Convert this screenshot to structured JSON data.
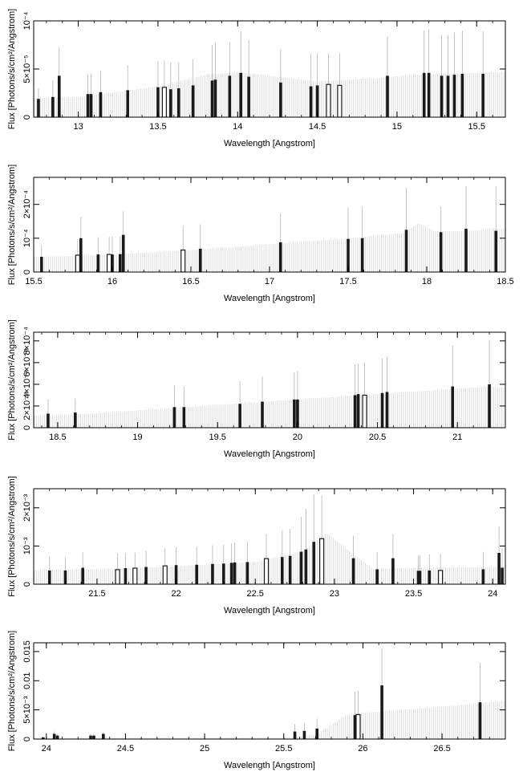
{
  "colors": {
    "frame": "#000000",
    "background_lines": "#c8c8c8",
    "error_bars": "#b4b4b4",
    "bars": "#1a1a1a"
  },
  "chart_data": [
    {
      "type": "bar",
      "xlabel": "Wavelength [Angstrom]",
      "ylabel": "Flux [Photons/s/cm²/Angstrom]",
      "xlim": [
        12.72,
        15.68
      ],
      "ylim": [
        0,
        0.0001
      ],
      "xticks": [
        13,
        13.5,
        14,
        14.5,
        15,
        15.5
      ],
      "xtick_labels": [
        "13",
        "13.5",
        "14",
        "14.5",
        "15",
        "15.5"
      ],
      "yticks": [
        0,
        5e-05,
        0.0001
      ],
      "ytick_labels": [
        "0",
        "5×10⁻⁵",
        "10⁻⁴"
      ],
      "continuum": {
        "x": [
          12.72,
          13.0,
          13.5,
          13.8,
          13.95,
          14.0,
          14.5,
          14.9,
          15.1,
          15.3,
          15.68
        ],
        "y": [
          2e-05,
          2.1e-05,
          3.2e-05,
          4.4e-05,
          4.6e-05,
          4.7e-05,
          3.7e-05,
          4.1e-05,
          4.4e-05,
          4.5e-05,
          4.7e-05
        ]
      },
      "bars": {
        "x": [
          12.75,
          12.84,
          12.88,
          13.06,
          13.08,
          13.14,
          13.31,
          13.5,
          13.54,
          13.58,
          13.63,
          13.72,
          13.84,
          13.86,
          13.95,
          14.02,
          14.07,
          14.27,
          14.46,
          14.5,
          14.57,
          14.64,
          14.94,
          15.17,
          15.2,
          15.28,
          15.32,
          15.36,
          15.41,
          15.54
        ],
        "y": [
          1.9e-05,
          2.1e-05,
          4.3e-05,
          2.4e-05,
          2.4e-05,
          2.6e-05,
          2.8e-05,
          3.1e-05,
          3.1e-05,
          2.9e-05,
          3e-05,
          3.3e-05,
          3.8e-05,
          3.9e-05,
          4.3e-05,
          4.6e-05,
          4.2e-05,
          3.6e-05,
          3.2e-05,
          3.3e-05,
          3.4e-05,
          3.3e-05,
          4.3e-05,
          4.6e-05,
          4.6e-05,
          4.3e-05,
          4.3e-05,
          4.4e-05,
          4.5e-05,
          4.5e-05
        ],
        "hollow": [
          false,
          false,
          false,
          false,
          false,
          false,
          false,
          false,
          true,
          false,
          false,
          false,
          false,
          false,
          false,
          false,
          false,
          false,
          false,
          false,
          true,
          true,
          false,
          false,
          false,
          false,
          false,
          false,
          false,
          false
        ],
        "err": [
          3e-05,
          3.8e-05,
          7.3e-05,
          4.4e-05,
          4.5e-05,
          4.8e-05,
          5.4e-05,
          5.8e-05,
          5.9e-05,
          5.7e-05,
          5.7e-05,
          6e-05,
          7.5e-05,
          7.7e-05,
          7.8e-05,
          8.9e-05,
          8e-05,
          7.1e-05,
          6.6e-05,
          6.6e-05,
          6.6e-05,
          6.6e-05,
          8.4e-05,
          9e-05,
          9.1e-05,
          8.5e-05,
          8.5e-05,
          8.8e-05,
          9e-05,
          8.9e-05
        ]
      }
    },
    {
      "type": "bar",
      "xlabel": "Wavelength [Angstrom]",
      "ylabel": "Flux [Photons/s/cm²/Angstrom]",
      "xlim": [
        15.5,
        18.5
      ],
      "ylim": [
        0,
        0.00028
      ],
      "xticks": [
        15.5,
        16,
        16.5,
        17,
        17.5,
        18,
        18.5
      ],
      "xtick_labels": [
        "15.5",
        "16",
        "16.5",
        "17",
        "17.5",
        "18",
        "18.5"
      ],
      "yticks": [
        0,
        0.0001,
        0.0002
      ],
      "ytick_labels": [
        "0",
        "10⁻⁴",
        "2×10⁻⁴"
      ],
      "continuum": {
        "x": [
          15.5,
          15.8,
          16.0,
          16.5,
          17.0,
          17.5,
          17.85,
          17.95,
          18.05,
          18.3,
          18.4,
          18.5
        ],
        "y": [
          4.5e-05,
          4.8e-05,
          5.2e-05,
          6.5e-05,
          8.2e-05,
          0.0001,
          0.000115,
          0.000145,
          0.00012,
          0.000122,
          0.000128,
          0.000128
        ]
      },
      "bars": {
        "x": [
          15.55,
          15.78,
          15.8,
          15.91,
          15.98,
          16.0,
          16.05,
          16.07,
          16.45,
          16.56,
          17.07,
          17.5,
          17.59,
          17.87,
          18.09,
          18.25,
          18.44
        ],
        "y": [
          4.5e-05,
          5e-05,
          0.0001,
          5.2e-05,
          5.2e-05,
          5.2e-05,
          5.3e-05,
          0.00011,
          6.5e-05,
          6.9e-05,
          8.8e-05,
          9.8e-05,
          0.0001,
          0.000125,
          0.000118,
          0.000128,
          0.000122
        ],
        "hollow": [
          false,
          true,
          false,
          false,
          true,
          false,
          false,
          false,
          true,
          false,
          false,
          false,
          false,
          false,
          false,
          false,
          false
        ],
        "err": [
          8e-05,
          9.8e-05,
          0.000163,
          0.000103,
          0.000104,
          0.000104,
          0.000106,
          0.00018,
          0.000137,
          0.000141,
          0.000173,
          0.000191,
          0.000194,
          0.000249,
          0.000194,
          0.000254,
          0.000254
        ]
      }
    },
    {
      "type": "bar",
      "xlabel": "Wavelength [Angstrom]",
      "ylabel": "Flux [Photons/s/cm²/Angstrom]",
      "xlim": [
        18.35,
        21.3
      ],
      "ylim": [
        0,
        0.00088
      ],
      "xticks": [
        18.5,
        19,
        19.5,
        20,
        20.5,
        21
      ],
      "xtick_labels": [
        "18.5",
        "19",
        "19.5",
        "20",
        "20.5",
        "21"
      ],
      "yticks": [
        0,
        0.0002,
        0.0004,
        0.0006,
        0.0008
      ],
      "ytick_labels": [
        "0",
        "2×10⁻⁴",
        "4×10⁻⁴",
        "6×10⁻⁴",
        "8×10⁻⁴"
      ],
      "continuum": {
        "x": [
          18.35,
          18.6,
          19.0,
          19.5,
          20.0,
          20.5,
          21.0,
          21.2,
          21.3
        ],
        "y": [
          0.00011,
          0.00012,
          0.00016,
          0.00021,
          0.00026,
          0.00031,
          0.00036,
          0.00038,
          0.00037
        ]
      },
      "bars": {
        "x": [
          18.44,
          18.61,
          19.23,
          19.29,
          19.64,
          19.78,
          19.98,
          20.0,
          20.36,
          20.38,
          20.42,
          20.53,
          20.56,
          20.97,
          21.2
        ],
        "y": [
          0.00013,
          0.00014,
          0.00019,
          0.00019,
          0.00022,
          0.00024,
          0.00026,
          0.00026,
          0.0003,
          0.00031,
          0.0003,
          0.00032,
          0.00033,
          0.00038,
          0.0004
        ],
        "hollow": [
          false,
          false,
          false,
          false,
          false,
          false,
          false,
          false,
          false,
          false,
          true,
          false,
          false,
          false,
          false
        ],
        "err": [
          0.00026,
          0.00027,
          0.00039,
          0.00038,
          0.00043,
          0.00047,
          0.00051,
          0.00052,
          0.00058,
          0.00059,
          0.0006,
          0.00064,
          0.00065,
          0.00076,
          0.00081
        ]
      }
    },
    {
      "type": "bar",
      "xlabel": "Wavelength [Angstrom]",
      "ylabel": "Flux [Photons/s/cm²/Angstrom]",
      "xlim": [
        21.1,
        24.08
      ],
      "ylim": [
        0,
        0.0025
      ],
      "xticks": [
        21.5,
        22,
        22.5,
        23,
        23.5,
        24
      ],
      "xtick_labels": [
        "21.5",
        "22",
        "22.5",
        "23",
        "23.5",
        "24"
      ],
      "yticks": [
        0,
        0.001,
        0.002
      ],
      "ytick_labels": [
        "0",
        "10⁻³",
        "2×10⁻³"
      ],
      "continuum": {
        "x": [
          21.1,
          21.5,
          22.0,
          22.5,
          22.8,
          22.95,
          23.1,
          23.25,
          23.4,
          23.7,
          24.08
        ],
        "y": [
          0.00037,
          0.00039,
          0.00047,
          0.00058,
          0.00086,
          0.00134,
          0.00085,
          0.00039,
          0.00042,
          0.00044,
          0.00046
        ]
      },
      "bars": {
        "x": [
          21.2,
          21.3,
          21.41,
          21.63,
          21.68,
          21.74,
          21.81,
          21.93,
          22.0,
          22.13,
          22.23,
          22.3,
          22.35,
          22.37,
          22.45,
          22.57,
          22.67,
          22.72,
          22.79,
          22.82,
          22.87,
          22.92,
          23.12,
          23.27,
          23.37,
          23.53,
          23.54,
          23.6,
          23.67,
          23.94,
          24.04,
          24.06
        ],
        "y": [
          0.00036,
          0.00036,
          0.00043,
          0.00038,
          0.00042,
          0.00042,
          0.00045,
          0.00048,
          0.0005,
          0.00051,
          0.00053,
          0.00054,
          0.00056,
          0.00057,
          0.00058,
          0.00067,
          0.00071,
          0.00074,
          0.00085,
          0.00091,
          0.00111,
          0.00119,
          0.00068,
          0.00039,
          0.00068,
          0.00035,
          0.00035,
          0.00036,
          0.00036,
          0.00039,
          0.00082,
          0.00043
        ],
        "hollow": [
          false,
          false,
          false,
          true,
          false,
          true,
          false,
          true,
          false,
          false,
          false,
          false,
          false,
          false,
          false,
          true,
          false,
          false,
          false,
          false,
          false,
          true,
          false,
          false,
          false,
          false,
          false,
          false,
          true,
          false,
          false,
          false
        ],
        "err": [
          0.00073,
          0.00071,
          0.00084,
          0.00081,
          0.00082,
          0.00083,
          0.00087,
          0.00094,
          0.00097,
          0.00098,
          0.00102,
          0.00104,
          0.00107,
          0.00109,
          0.00111,
          0.00132,
          0.00141,
          0.00145,
          0.00177,
          0.00198,
          0.00235,
          0.00232,
          0.00127,
          0.00083,
          0.00131,
          0.00076,
          0.00076,
          0.00078,
          0.00079,
          0.00085,
          0.00152,
          0.00094
        ]
      }
    },
    {
      "type": "bar",
      "xlabel": "Wavelength [Angstrom]",
      "ylabel": "Flux [Photons/s/cm²/Angstrom]",
      "xlim": [
        23.92,
        26.9
      ],
      "ylim": [
        0,
        0.0165
      ],
      "xticks": [
        24,
        24.5,
        25,
        25.5,
        26,
        26.5
      ],
      "xtick_labels": [
        "24",
        "24.5",
        "25",
        "25.5",
        "26",
        "26.5"
      ],
      "yticks": [
        0,
        0.005,
        0.01,
        0.015
      ],
      "ytick_labels": [
        "0",
        "5×10⁻³",
        "0.01",
        "0.015"
      ],
      "continuum": {
        "x": [
          23.92,
          25.5,
          25.7,
          25.8,
          25.9,
          26.0,
          26.3,
          26.6,
          26.9
        ],
        "y": [
          0.0002,
          0.0003,
          0.0007,
          0.0024,
          0.0042,
          0.0045,
          0.0051,
          0.0058,
          0.0066
        ]
      },
      "bars": {
        "x": [
          23.98,
          24.05,
          24.07,
          24.28,
          24.3,
          24.36,
          25.57,
          25.63,
          25.71,
          25.95,
          25.97,
          26.12,
          26.74
        ],
        "y": [
          0.0003,
          0.0009,
          0.0006,
          0.0006,
          0.0006,
          0.0009,
          0.0013,
          0.0014,
          0.0018,
          0.0041,
          0.0042,
          0.0092,
          0.0063
        ],
        "hollow": [
          false,
          false,
          false,
          false,
          false,
          false,
          false,
          false,
          false,
          false,
          true,
          false,
          false
        ],
        "err": [
          0.0005,
          0.0013,
          0.0009,
          0.0009,
          0.0009,
          0.0012,
          0.0026,
          0.0027,
          0.0035,
          0.0081,
          0.0083,
          0.0155,
          0.0131
        ]
      }
    }
  ]
}
